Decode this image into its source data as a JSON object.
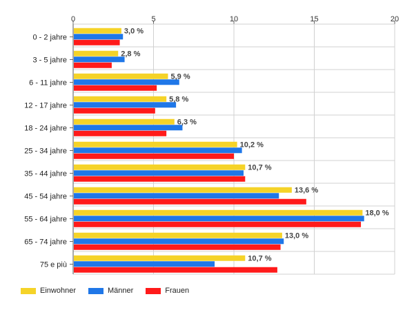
{
  "chart_data": {
    "type": "bar",
    "orientation": "horizontal",
    "categories": [
      "0 - 2 jahre",
      "3 - 5 jahre",
      "6 - 11 jahre",
      "12 - 17 jahre",
      "18 - 24 jahre",
      "25 - 34 jahre",
      "35 - 44 jahre",
      "45 - 54 jahre",
      "55 - 64 jahre",
      "65 - 74 jahre",
      "75 e più"
    ],
    "series": [
      {
        "name": "Einwohner",
        "color": "#f5d328",
        "values": [
          3.0,
          2.8,
          5.9,
          5.8,
          6.3,
          10.2,
          10.7,
          13.6,
          18.0,
          13.0,
          10.7
        ]
      },
      {
        "name": "Männer",
        "color": "#1f77e8",
        "values": [
          3.1,
          3.2,
          6.6,
          6.4,
          6.8,
          10.5,
          10.6,
          12.8,
          18.1,
          13.1,
          8.8
        ]
      },
      {
        "name": "Frauen",
        "color": "#ff1a1a",
        "values": [
          2.9,
          2.4,
          5.2,
          5.1,
          5.8,
          10.0,
          10.7,
          14.5,
          17.9,
          12.9,
          12.7
        ]
      }
    ],
    "data_labels": [
      "3,0 %",
      "2,8 %",
      "5,9 %",
      "5,8 %",
      "6,3 %",
      "10,2 %",
      "10,7 %",
      "13,6 %",
      "18,0 %",
      "13,0 %",
      "10,7 %"
    ],
    "xlim": [
      0,
      20
    ],
    "xticks": [
      "0",
      "5",
      "10",
      "15",
      "20"
    ],
    "xticks_position": "top",
    "grid": true,
    "legend_position": "bottom-left",
    "title": "",
    "xlabel": "",
    "ylabel": ""
  }
}
